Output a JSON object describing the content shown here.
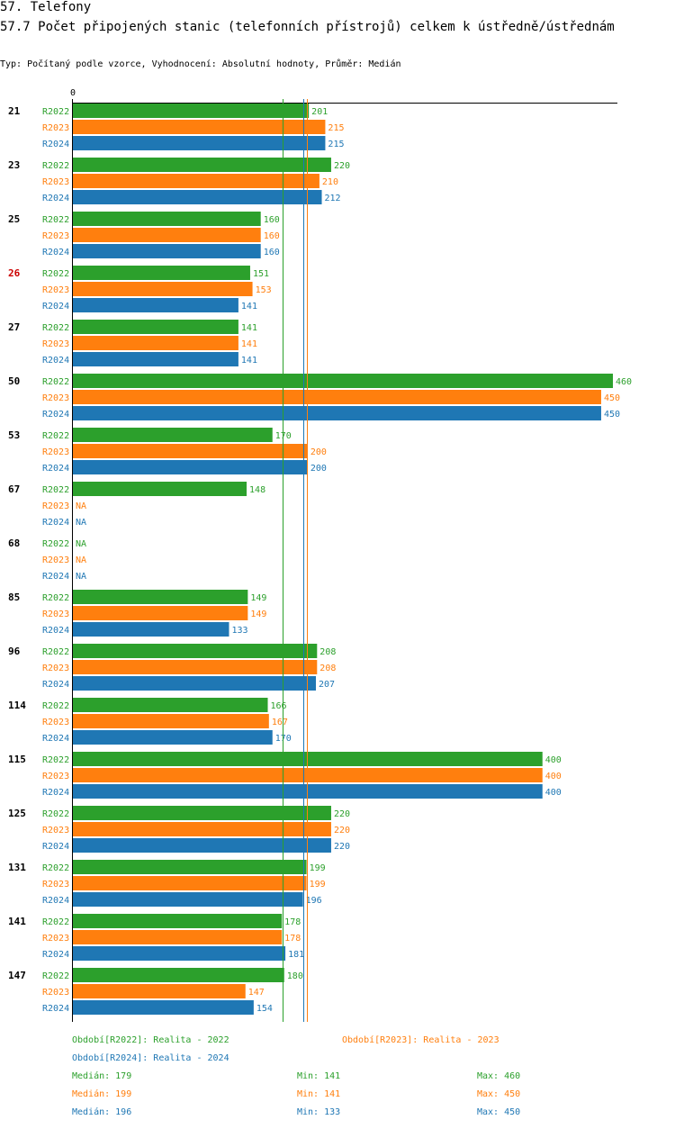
{
  "header": {
    "title": "57. Telefony",
    "subtitle": "57.7 Počet připojených stanic (telefonních přístrojů) celkem k ústředně/ústřednám",
    "type_line": "Typ: Počítaný podle vzorce, Vyhodnocení: Absolutní hodnoty, Průměr: Medián"
  },
  "chart_data": {
    "type": "bar",
    "orientation": "horizontal",
    "xlim": [
      0,
      460
    ],
    "zero_tick": "0",
    "highlight_color": "#cc0000",
    "categories": [
      {
        "label": "21",
        "highlight": false
      },
      {
        "label": "23",
        "highlight": false
      },
      {
        "label": "25",
        "highlight": false
      },
      {
        "label": "26",
        "highlight": true
      },
      {
        "label": "27",
        "highlight": false
      },
      {
        "label": "50",
        "highlight": false
      },
      {
        "label": "53",
        "highlight": false
      },
      {
        "label": "67",
        "highlight": false
      },
      {
        "label": "68",
        "highlight": false
      },
      {
        "label": "85",
        "highlight": false
      },
      {
        "label": "96",
        "highlight": false
      },
      {
        "label": "114",
        "highlight": false
      },
      {
        "label": "115",
        "highlight": false
      },
      {
        "label": "125",
        "highlight": false
      },
      {
        "label": "131",
        "highlight": false
      },
      {
        "label": "141",
        "highlight": false
      },
      {
        "label": "147",
        "highlight": false
      }
    ],
    "na_label": "NA",
    "series": [
      {
        "name": "R2022",
        "color": "#2ca02c",
        "values": [
          201,
          220,
          160,
          151,
          141,
          460,
          170,
          148,
          null,
          149,
          208,
          166,
          400,
          220,
          199,
          178,
          180
        ],
        "median": 179,
        "min": 141,
        "max": 460
      },
      {
        "name": "R2023",
        "color": "#ff7f0e",
        "values": [
          215,
          210,
          160,
          153,
          141,
          450,
          200,
          null,
          null,
          149,
          208,
          167,
          400,
          220,
          199,
          178,
          147
        ],
        "median": 199,
        "min": 141,
        "max": 450
      },
      {
        "name": "R2024",
        "color": "#1f77b4",
        "values": [
          215,
          212,
          160,
          141,
          141,
          450,
          200,
          null,
          null,
          133,
          207,
          170,
          400,
          220,
          196,
          181,
          154
        ],
        "median": 196,
        "min": 133,
        "max": 450
      }
    ]
  },
  "legend": {
    "period_2022": "Období[R2022]: Realita - 2022",
    "period_2023": "Období[R2023]: Realita - 2023",
    "period_2024": "Období[R2024]: Realita - 2024",
    "stats": [
      {
        "median": "Medián: 179",
        "min": "Min: 141",
        "max": "Max: 460"
      },
      {
        "median": "Medián: 199",
        "min": "Min: 141",
        "max": "Max: 450"
      },
      {
        "median": "Medián: 196",
        "min": "Min: 133",
        "max": "Max: 450"
      }
    ]
  }
}
